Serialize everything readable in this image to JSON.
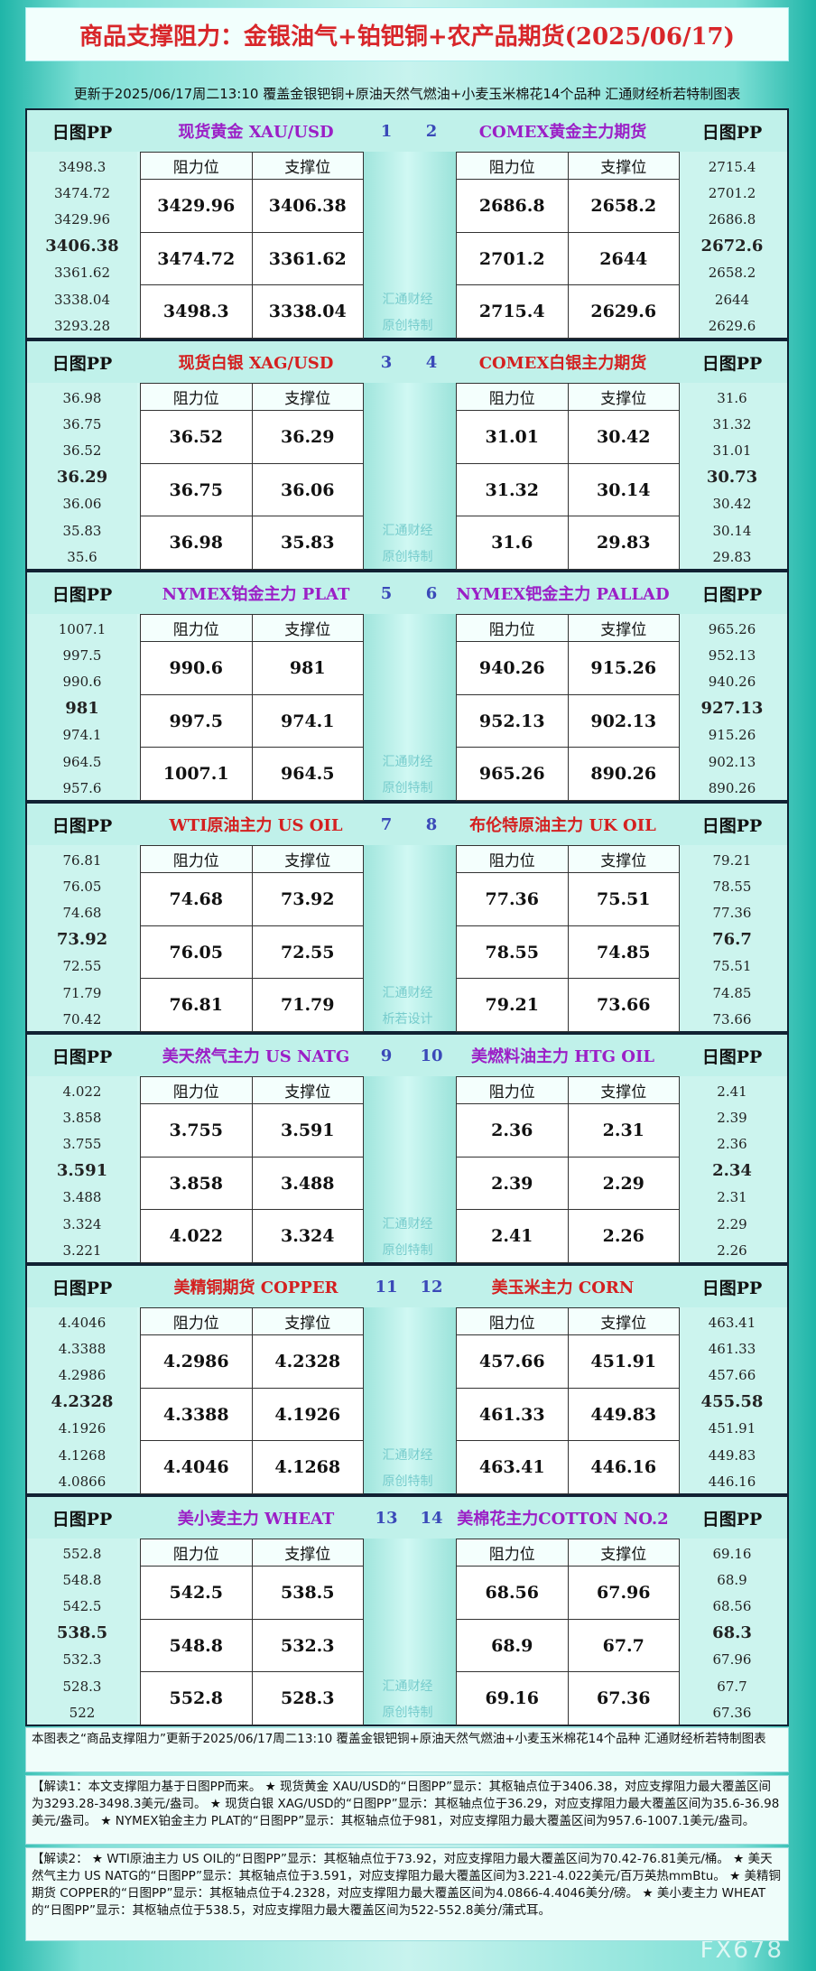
{
  "header": {
    "title": "商品支撑阻力：金银油气+铂钯铜+农产品期货(2025/06/17)",
    "update": "更新于2025/06/17周二13:10 覆盖金银钯铜+原油天然气燃油+小麦玉米棉花14个品种 汇通财经析若特制图表"
  },
  "blocks": [
    {
      "left": {
        "pp_label": "日图PP",
        "name": "现货黄金 XAU/USD",
        "num": "1",
        "pp": [
          "3498.3",
          "3474.72",
          "3429.96",
          "3406.38",
          "3361.62",
          "3338.04",
          "3293.28"
        ],
        "headers": [
          "阻力位",
          "支撑位"
        ],
        "rows": [
          [
            "3429.96",
            "3406.38"
          ],
          [
            "3474.72",
            "3361.62"
          ],
          [
            "3498.3",
            "3338.04"
          ]
        ]
      },
      "right": {
        "pp_label": "日图PP",
        "name": "COMEX黄金主力期货",
        "num": "2",
        "pp": [
          "2715.4",
          "2701.2",
          "2686.8",
          "2672.6",
          "2658.2",
          "2644",
          "2629.6"
        ],
        "headers": [
          "阻力位",
          "支撑位"
        ],
        "rows": [
          [
            "2686.8",
            "2658.2"
          ],
          [
            "2701.2",
            "2644"
          ],
          [
            "2715.4",
            "2629.6"
          ]
        ]
      },
      "watermark": [
        "汇通财经",
        "原创特制"
      ]
    },
    {
      "left": {
        "pp_label": "日图PP",
        "name": "现货白银 XAG/USD",
        "num": "3",
        "pp": [
          "36.98",
          "36.75",
          "36.52",
          "36.29",
          "36.06",
          "35.83",
          "35.6"
        ],
        "headers": [
          "阻力位",
          "支撑位"
        ],
        "rows": [
          [
            "36.52",
            "36.29"
          ],
          [
            "36.75",
            "36.06"
          ],
          [
            "36.98",
            "35.83"
          ]
        ]
      },
      "right": {
        "pp_label": "日图PP",
        "name": "COMEX白银主力期货",
        "num": "4",
        "pp": [
          "31.6",
          "31.32",
          "31.01",
          "30.73",
          "30.42",
          "30.14",
          "29.83"
        ],
        "headers": [
          "阻力位",
          "支撑位"
        ],
        "rows": [
          [
            "31.01",
            "30.42"
          ],
          [
            "31.32",
            "30.14"
          ],
          [
            "31.6",
            "29.83"
          ]
        ]
      },
      "watermark": [
        "汇通财经",
        "原创特制"
      ]
    },
    {
      "left": {
        "pp_label": "日图PP",
        "name": "NYMEX铂金主力 PLAT",
        "num": "5",
        "pp": [
          "1007.1",
          "997.5",
          "990.6",
          "981",
          "974.1",
          "964.5",
          "957.6"
        ],
        "headers": [
          "阻力位",
          "支撑位"
        ],
        "rows": [
          [
            "990.6",
            "981"
          ],
          [
            "997.5",
            "974.1"
          ],
          [
            "1007.1",
            "964.5"
          ]
        ]
      },
      "right": {
        "pp_label": "日图PP",
        "name": "NYMEX钯金主力 PALLAD",
        "num": "6",
        "pp": [
          "965.26",
          "952.13",
          "940.26",
          "927.13",
          "915.26",
          "902.13",
          "890.26"
        ],
        "headers": [
          "阻力位",
          "支撑位"
        ],
        "rows": [
          [
            "940.26",
            "915.26"
          ],
          [
            "952.13",
            "902.13"
          ],
          [
            "965.26",
            "890.26"
          ]
        ]
      },
      "watermark": [
        "汇通财经",
        "原创特制"
      ]
    },
    {
      "left": {
        "pp_label": "日图PP",
        "name": "WTI原油主力 US OIL",
        "num": "7",
        "pp": [
          "76.81",
          "76.05",
          "74.68",
          "73.92",
          "72.55",
          "71.79",
          "70.42"
        ],
        "headers": [
          "阻力位",
          "支撑位"
        ],
        "rows": [
          [
            "74.68",
            "73.92"
          ],
          [
            "76.05",
            "72.55"
          ],
          [
            "76.81",
            "71.79"
          ]
        ]
      },
      "right": {
        "pp_label": "日图PP",
        "name": "布伦特原油主力 UK OIL",
        "num": "8",
        "pp": [
          "79.21",
          "78.55",
          "77.36",
          "76.7",
          "75.51",
          "74.85",
          "73.66"
        ],
        "headers": [
          "阻力位",
          "支撑位"
        ],
        "rows": [
          [
            "77.36",
            "75.51"
          ],
          [
            "78.55",
            "74.85"
          ],
          [
            "79.21",
            "73.66"
          ]
        ]
      },
      "watermark": [
        "汇通财经",
        "析若设计"
      ]
    },
    {
      "left": {
        "pp_label": "日图PP",
        "name": "美天然气主力 US NATG",
        "num": "9",
        "pp": [
          "4.022",
          "3.858",
          "3.755",
          "3.591",
          "3.488",
          "3.324",
          "3.221"
        ],
        "headers": [
          "阻力位",
          "支撑位"
        ],
        "rows": [
          [
            "3.755",
            "3.591"
          ],
          [
            "3.858",
            "3.488"
          ],
          [
            "4.022",
            "3.324"
          ]
        ]
      },
      "right": {
        "pp_label": "日图PP",
        "name": "美燃料油主力 HTG OIL",
        "num": "10",
        "pp": [
          "2.41",
          "2.39",
          "2.36",
          "2.34",
          "2.31",
          "2.29",
          "2.26"
        ],
        "headers": [
          "阻力位",
          "支撑位"
        ],
        "rows": [
          [
            "2.36",
            "2.31"
          ],
          [
            "2.39",
            "2.29"
          ],
          [
            "2.41",
            "2.26"
          ]
        ]
      },
      "watermark": [
        "汇通财经",
        "原创特制"
      ]
    },
    {
      "left": {
        "pp_label": "日图PP",
        "name": "美精铜期货 COPPER",
        "num": "11",
        "pp": [
          "4.4046",
          "4.3388",
          "4.2986",
          "4.2328",
          "4.1926",
          "4.1268",
          "4.0866"
        ],
        "headers": [
          "阻力位",
          "支撑位"
        ],
        "rows": [
          [
            "4.2986",
            "4.2328"
          ],
          [
            "4.3388",
            "4.1926"
          ],
          [
            "4.4046",
            "4.1268"
          ]
        ]
      },
      "right": {
        "pp_label": "日图PP",
        "name": "美玉米主力 CORN",
        "num": "12",
        "pp": [
          "463.41",
          "461.33",
          "457.66",
          "455.58",
          "451.91",
          "449.83",
          "446.16"
        ],
        "headers": [
          "阻力位",
          "支撑位"
        ],
        "rows": [
          [
            "457.66",
            "451.91"
          ],
          [
            "461.33",
            "449.83"
          ],
          [
            "463.41",
            "446.16"
          ]
        ]
      },
      "watermark": [
        "汇通财经",
        "原创特制"
      ]
    },
    {
      "left": {
        "pp_label": "日图PP",
        "name": "美小麦主力 WHEAT",
        "num": "13",
        "pp": [
          "552.8",
          "548.8",
          "542.5",
          "538.5",
          "532.3",
          "528.3",
          "522"
        ],
        "headers": [
          "阻力位",
          "支撑位"
        ],
        "rows": [
          [
            "542.5",
            "538.5"
          ],
          [
            "548.8",
            "532.3"
          ],
          [
            "552.8",
            "528.3"
          ]
        ]
      },
      "right": {
        "pp_label": "日图PP",
        "name": "美棉花主力COTTON NO.2",
        "num": "14",
        "pp": [
          "69.16",
          "68.9",
          "68.56",
          "68.3",
          "67.96",
          "67.7",
          "67.36"
        ],
        "headers": [
          "阻力位",
          "支撑位"
        ],
        "rows": [
          [
            "68.56",
            "67.96"
          ],
          [
            "68.9",
            "67.7"
          ],
          [
            "69.16",
            "67.36"
          ]
        ]
      },
      "watermark": [
        "汇通财经",
        "原创特制"
      ]
    }
  ],
  "notes": [
    "本图表之“商品支撑阻力”更新于2025/06/17周二13:10 覆盖金银钯铜+原油天然气燃油+小麦玉米棉花14个品种 汇通财经析若特制图表",
    "【解读1：本文支撑阻力基于日图PP而来。 ★ 现货黄金 XAU/USD的“日图PP”显示：其枢轴点位于3406.38，对应支撑阻力最大覆盖区间为3293.28-3498.3美元/盎司。 ★ 现货白银 XAG/USD的“日图PP”显示：其枢轴点位于36.29，对应支撑阻力最大覆盖区间为35.6-36.98美元/盎司。 ★ NYMEX铂金主力 PLAT的“日图PP”显示：其枢轴点位于981，对应支撑阻力最大覆盖区间为957.6-1007.1美元/盎司。",
    "【解读2： ★ WTI原油主力 US OIL的“日图PP”显示：其枢轴点位于73.92，对应支撑阻力最大覆盖区间为70.42-76.81美元/桶。 ★ 美天然气主力 US NATG的“日图PP”显示：其枢轴点位于3.591，对应支撑阻力最大覆盖区间为3.221-4.022美元/百万英热mmBtu。 ★ 美精铜期货 COPPER的“日图PP”显示：其枢轴点位于4.2328，对应支撑阻力最大覆盖区间为4.0866-4.4046美分/磅。 ★ 美小麦主力 WHEAT的“日图PP”显示：其枢轴点位于538.5，对应支撑阻力最大覆盖区间为522-552.8美分/蒲式耳。"
  ],
  "brand": "FX678"
}
